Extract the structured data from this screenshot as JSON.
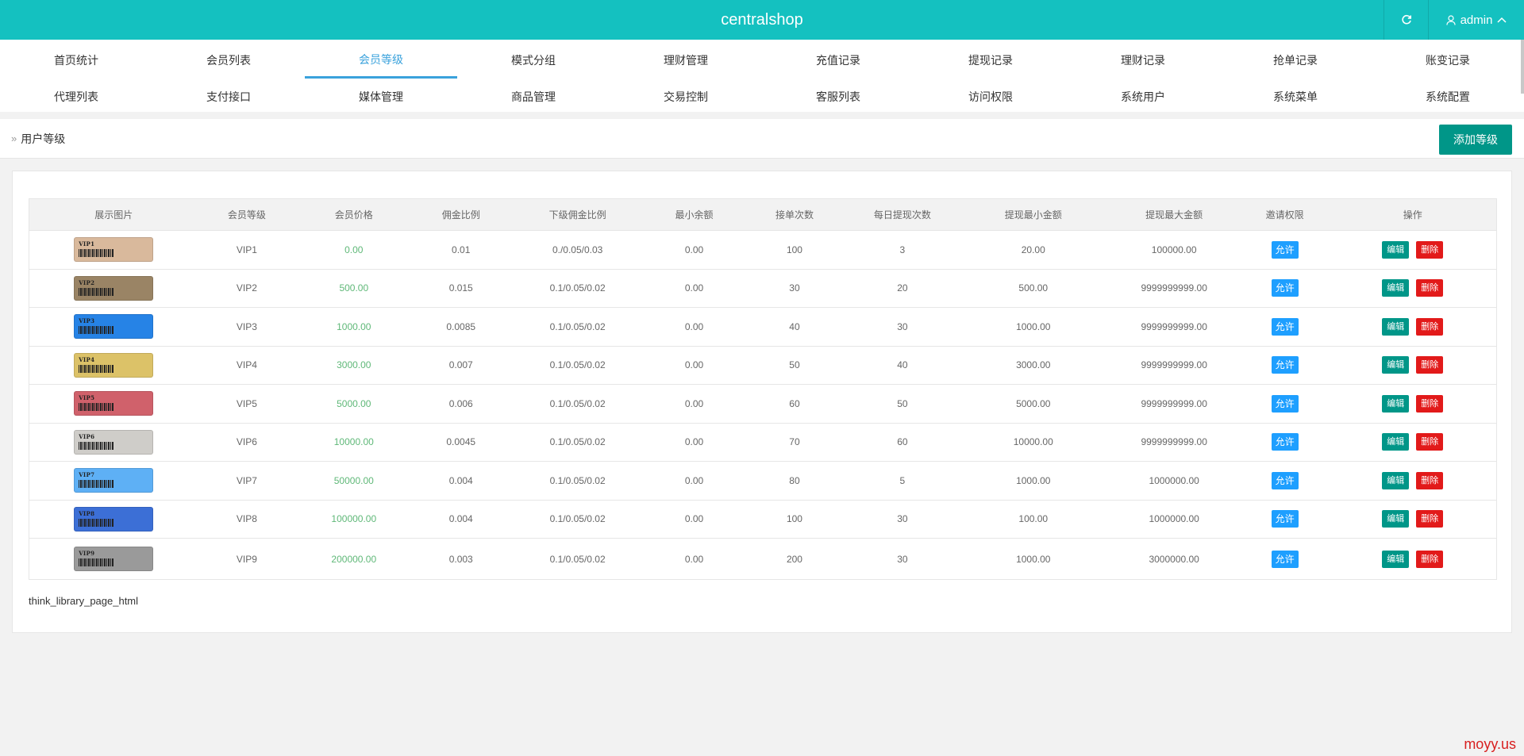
{
  "header": {
    "brand": "centralshop",
    "user": "admin"
  },
  "nav": {
    "row1": [
      "首页统计",
      "会员列表",
      "会员等级",
      "模式分组",
      "理财管理",
      "充值记录",
      "提现记录",
      "理财记录",
      "抢单记录",
      "账变记录"
    ],
    "row2": [
      "代理列表",
      "支付接口",
      "媒体管理",
      "商品管理",
      "交易控制",
      "客服列表",
      "访问权限",
      "系统用户",
      "系统菜单",
      "系统配置"
    ],
    "active": "会员等级"
  },
  "breadcrumb": {
    "title": "用户等级"
  },
  "toolbar": {
    "add_label": "添加等级"
  },
  "table": {
    "headers": [
      "展示图片",
      "会员等级",
      "会员价格",
      "佣金比例",
      "下级佣金比例",
      "最小余额",
      "接单次数",
      "每日提现次数",
      "提现最小金额",
      "提现最大金额",
      "邀请权限",
      "操作"
    ],
    "rows": [
      {
        "card_label": "VIP1",
        "card_color": "#d9b99c",
        "level": "VIP1",
        "price": "0.00",
        "commission": "0.01",
        "sub_commission": "0./0.05/0.03",
        "min_balance": "0.00",
        "orders": "100",
        "daily_withdraw": "3",
        "withdraw_min": "20.00",
        "withdraw_max": "100000.00"
      },
      {
        "card_label": "VIP2",
        "card_color": "#9a8465",
        "level": "VIP2",
        "price": "500.00",
        "commission": "0.015",
        "sub_commission": "0.1/0.05/0.02",
        "min_balance": "0.00",
        "orders": "30",
        "daily_withdraw": "20",
        "withdraw_min": "500.00",
        "withdraw_max": "9999999999.00"
      },
      {
        "card_label": "VIP3",
        "card_color": "#2683e6",
        "level": "VIP3",
        "price": "1000.00",
        "commission": "0.0085",
        "sub_commission": "0.1/0.05/0.02",
        "min_balance": "0.00",
        "orders": "40",
        "daily_withdraw": "30",
        "withdraw_min": "1000.00",
        "withdraw_max": "9999999999.00"
      },
      {
        "card_label": "VIP4",
        "card_color": "#dcc268",
        "level": "VIP4",
        "price": "3000.00",
        "commission": "0.007",
        "sub_commission": "0.1/0.05/0.02",
        "min_balance": "0.00",
        "orders": "50",
        "daily_withdraw": "40",
        "withdraw_min": "3000.00",
        "withdraw_max": "9999999999.00"
      },
      {
        "card_label": "VIP5",
        "card_color": "#d0616b",
        "level": "VIP5",
        "price": "5000.00",
        "commission": "0.006",
        "sub_commission": "0.1/0.05/0.02",
        "min_balance": "0.00",
        "orders": "60",
        "daily_withdraw": "50",
        "withdraw_min": "5000.00",
        "withdraw_max": "9999999999.00"
      },
      {
        "card_label": "VIP6",
        "card_color": "#cfcdc9",
        "level": "VIP6",
        "price": "10000.00",
        "commission": "0.0045",
        "sub_commission": "0.1/0.05/0.02",
        "min_balance": "0.00",
        "orders": "70",
        "daily_withdraw": "60",
        "withdraw_min": "10000.00",
        "withdraw_max": "9999999999.00"
      },
      {
        "card_label": "VIP7",
        "card_color": "#5eb0f5",
        "level": "VIP7",
        "price": "50000.00",
        "commission": "0.004",
        "sub_commission": "0.1/0.05/0.02",
        "min_balance": "0.00",
        "orders": "80",
        "daily_withdraw": "5",
        "withdraw_min": "1000.00",
        "withdraw_max": "1000000.00"
      },
      {
        "card_label": "VIP8",
        "card_color": "#3c6fd6",
        "level": "VIP8",
        "price": "100000.00",
        "commission": "0.004",
        "sub_commission": "0.1/0.05/0.02",
        "min_balance": "0.00",
        "orders": "100",
        "daily_withdraw": "30",
        "withdraw_min": "100.00",
        "withdraw_max": "1000000.00"
      },
      {
        "card_label": "VIP9",
        "card_color": "#9a9a9a",
        "level": "VIP9",
        "price": "200000.00",
        "commission": "0.003",
        "sub_commission": "0.1/0.05/0.02",
        "min_balance": "0.00",
        "orders": "200",
        "daily_withdraw": "30",
        "withdraw_min": "1000.00",
        "withdraw_max": "3000000.00"
      }
    ],
    "invite_label": "允许",
    "edit_label": "编辑",
    "delete_label": "删除"
  },
  "pager": {
    "text": "think_library_page_html"
  },
  "watermark": "moyy.us",
  "icons": {
    "refresh": "refresh-icon",
    "user": "user-icon",
    "chevron": "chevron-up-icon",
    "breadcrumb": "double-chevron-right-icon"
  }
}
